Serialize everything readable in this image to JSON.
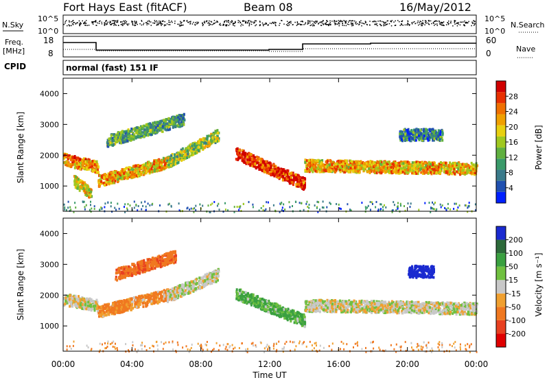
{
  "header": {
    "station": "Fort Hays East (fitACF)",
    "beam": "Beam 08",
    "date": "16/May/2012"
  },
  "strip_labels": {
    "nsky": "N.Sky",
    "nsky_hi": "10^5",
    "nsky_lo": "10^0",
    "nsearch": "N.Search",
    "nsearch_hi": "10^5",
    "nsearch_lo": "10^0",
    "freq_line1": "Freq.",
    "freq_line2": "[MHz]",
    "freq_hi": "18",
    "freq_lo": "8",
    "nave": "Nave",
    "nave_hi": "60",
    "nave_lo": "0",
    "cpid": "CPID",
    "cpid_mode": "normal (fast) 151 IF"
  },
  "chart_data": [
    {
      "type": "heatmap",
      "panel": "power",
      "xlabel": "Time UT",
      "ylabel": "Slant Range [km]",
      "x_ticks": [
        "00:00",
        "04:00",
        "08:00",
        "12:00",
        "16:00",
        "20:00",
        "00:00"
      ],
      "y_ticks": [
        1000,
        2000,
        3000,
        4000
      ],
      "xlim_hours": [
        0,
        24
      ],
      "ylim": [
        180,
        4500
      ],
      "colorbar": {
        "label": "Power [dB]",
        "ticks": [
          4,
          8,
          12,
          16,
          20,
          24,
          28
        ],
        "range": [
          0,
          30
        ],
        "colors": [
          "#0020ff",
          "#2050b0",
          "#3a7a8a",
          "#3a9a6a",
          "#60b040",
          "#a0c820",
          "#e8d010",
          "#f0a000",
          "#f07000",
          "#e83000",
          "#d00000"
        ]
      },
      "bands": [
        {
          "t0": 0.0,
          "t1": 2.0,
          "r0": 1900,
          "r1": 1650,
          "power": 22
        },
        {
          "t0": 2.0,
          "t1": 6.0,
          "r0": 1200,
          "r1": 1800,
          "power": 20
        },
        {
          "t0": 6.0,
          "t1": 9.0,
          "r0": 1800,
          "r1": 2700,
          "power": 14
        },
        {
          "t0": 10.0,
          "t1": 14.0,
          "r0": 2100,
          "r1": 1100,
          "power": 26
        },
        {
          "t0": 14.0,
          "t1": 24.0,
          "r0": 1700,
          "r1": 1600,
          "power": 20
        },
        {
          "t0": 0.6,
          "t1": 1.6,
          "r0": 1200,
          "r1": 800,
          "power": 18
        },
        {
          "t0": 2.5,
          "t1": 7.0,
          "r0": 2500,
          "r1": 3200,
          "power": 10
        },
        {
          "t0": 19.5,
          "t1": 22.0,
          "r0": 2700,
          "r1": 2700,
          "power": 8
        }
      ]
    },
    {
      "type": "heatmap",
      "panel": "velocity",
      "xlabel": "Time UT",
      "ylabel": "Slant Range [km]",
      "x_ticks": [
        "00:00",
        "04:00",
        "08:00",
        "12:00",
        "16:00",
        "20:00",
        "00:00"
      ],
      "y_ticks": [
        1000,
        2000,
        3000,
        4000
      ],
      "xlim_hours": [
        0,
        24
      ],
      "ylim": [
        180,
        4500
      ],
      "colorbar": {
        "label": "Velocity [m s⁻¹]",
        "ticks": [
          "200",
          "100",
          "50",
          "15",
          "-15",
          "-50",
          "-100",
          "-200"
        ],
        "colors": [
          "#1a2ad0",
          "#2d6a3a",
          "#3aa040",
          "#70c040",
          "#c8c8c8",
          "#f0a030",
          "#f07820",
          "#e84020",
          "#e00000"
        ]
      },
      "bands": [
        {
          "t0": 0.0,
          "t1": 2.0,
          "r0": 1900,
          "r1": 1700,
          "vel": 0
        },
        {
          "t0": 2.0,
          "t1": 6.5,
          "r0": 1500,
          "r1": 2100,
          "vel": -40
        },
        {
          "t0": 6.0,
          "t1": 9.0,
          "r0": 2000,
          "r1": 2700,
          "vel": 0
        },
        {
          "t0": 10.0,
          "t1": 14.0,
          "r0": 2100,
          "r1": 1200,
          "vel": 40
        },
        {
          "t0": 14.0,
          "t1": 24.0,
          "r0": 1700,
          "r1": 1600,
          "vel": 0
        },
        {
          "t0": 3.0,
          "t1": 6.5,
          "r0": 2700,
          "r1": 3300,
          "vel": -60
        },
        {
          "t0": 20.0,
          "t1": 21.5,
          "r0": 2800,
          "r1": 2800,
          "vel": 220
        }
      ]
    }
  ]
}
